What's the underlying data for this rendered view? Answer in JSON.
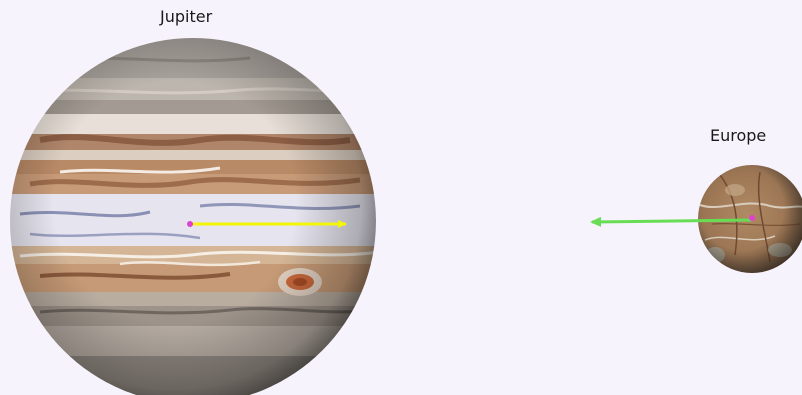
{
  "labels": {
    "jupiter": "Jupiter",
    "europe": "Europe"
  },
  "colors": {
    "background": "#f7f3fc",
    "jupiter_force_arrow": "#f5f50a",
    "europe_force_arrow": "#66dd55",
    "center_marker": "#e040d0"
  }
}
